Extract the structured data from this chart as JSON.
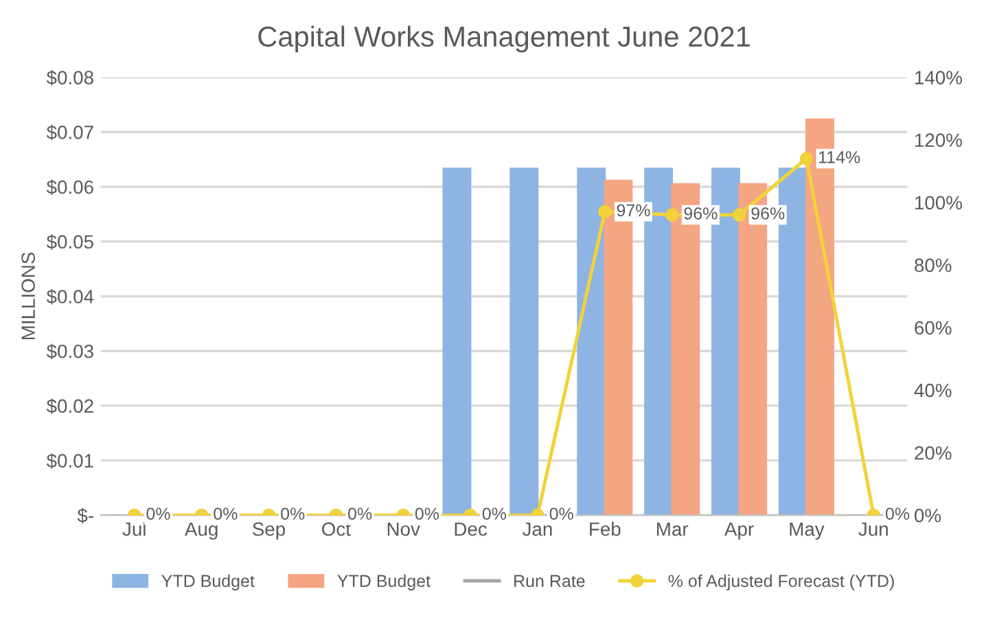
{
  "chart_data": {
    "type": "bar",
    "title": "Capital Works Management June 2021",
    "ylabel": "MILLIONS",
    "categories": [
      "Jul",
      "Aug",
      "Sep",
      "Oct",
      "Nov",
      "Dec",
      "Jan",
      "Feb",
      "Mar",
      "Apr",
      "May",
      "Jun"
    ],
    "series": [
      {
        "name": "YTD Budget",
        "color": "#8db4e2",
        "values": [
          0,
          0,
          0,
          0,
          0,
          0.0633,
          0.0633,
          0.0633,
          0.0633,
          0.0633,
          0.0633,
          0
        ]
      },
      {
        "name": "YTD Budget",
        "color": "#f4a582",
        "values": [
          0,
          0,
          0,
          0,
          0,
          0,
          0,
          0.0611,
          0.0605,
          0.0605,
          0.0723,
          0
        ]
      },
      {
        "name": "Run Rate",
        "type": "line",
        "color": "#a6a6a6",
        "values": [
          null,
          null,
          null,
          null,
          null,
          null,
          null,
          null,
          null,
          null,
          null,
          null
        ]
      },
      {
        "name": "% of Adjusted Forecast (YTD)",
        "type": "line",
        "axis": "y2",
        "color": "#f2d23a",
        "marker": "circle",
        "values": [
          0,
          0,
          0,
          0,
          0,
          0,
          0,
          97,
          96,
          96,
          114,
          0
        ],
        "value_labels": [
          "0%",
          "0%",
          "0%",
          "0%",
          "0%",
          "0%",
          "0%",
          "97%",
          "96%",
          "96%",
          "114%",
          "0%"
        ]
      }
    ],
    "ylim": [
      0,
      0.08
    ],
    "yticks": [
      {
        "value": 0,
        "label": "$-"
      },
      {
        "value": 0.01,
        "label": "$0.01"
      },
      {
        "value": 0.02,
        "label": "$0.02"
      },
      {
        "value": 0.03,
        "label": "$0.03"
      },
      {
        "value": 0.04,
        "label": "$0.04"
      },
      {
        "value": 0.05,
        "label": "$0.05"
      },
      {
        "value": 0.06,
        "label": "$0.06"
      },
      {
        "value": 0.07,
        "label": "$0.07"
      },
      {
        "value": 0.08,
        "label": "$0.08"
      }
    ],
    "y2lim": [
      0,
      140
    ],
    "y2ticks": [
      {
        "value": 0,
        "label": "0%"
      },
      {
        "value": 20,
        "label": "20%"
      },
      {
        "value": 40,
        "label": "40%"
      },
      {
        "value": 60,
        "label": "60%"
      },
      {
        "value": 80,
        "label": "80%"
      },
      {
        "value": 100,
        "label": "100%"
      },
      {
        "value": 120,
        "label": "120%"
      },
      {
        "value": 140,
        "label": "140%"
      }
    ],
    "grid": "y",
    "legend": "bottom"
  }
}
